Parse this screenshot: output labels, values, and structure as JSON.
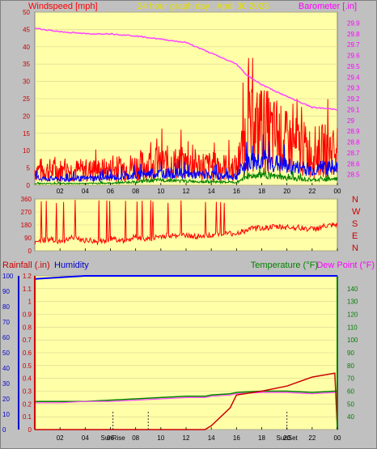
{
  "header": {
    "left_title": "Windspeed [mph]",
    "center_title": "24 hour graph day : April 30 2023",
    "right_title": "Barometer [.in]"
  },
  "lower_header": {
    "rainfall": "Rainfall (.in)",
    "humidity": "Humidity",
    "temperature": "Temperature (°F)",
    "dewpoint": "Dew Point (°F)"
  },
  "x_ticks": [
    "02",
    "04",
    "06",
    "08",
    "10",
    "12",
    "14",
    "16",
    "18",
    "20",
    "22",
    "00"
  ],
  "events": {
    "sunrise": "SunRise",
    "sunset": "SunSet",
    "sunrise_hour": 6.2,
    "sunset_hour": 20.0
  },
  "compass": [
    "N",
    "W",
    "S",
    "E",
    "N"
  ],
  "colors": {
    "plot_bg": "#ffffa8",
    "grid": "#d8d090",
    "wind_gust": "#ff0000",
    "wind_avg": "#0000ff",
    "wind_low": "#008000",
    "barometer": "#ff44ff",
    "direction": "#ff0000",
    "humidity": "#0000ff",
    "temperature": "#008000",
    "dewpoint": "#ff44ff",
    "rainfall": "#cc0000"
  },
  "chart_data": [
    {
      "type": "line",
      "panel": "wind-barometer",
      "x": [
        0,
        2,
        4,
        6,
        8,
        10,
        12,
        14,
        16,
        16.8,
        18,
        20,
        22,
        24
      ],
      "series": [
        {
          "values": [
            4.5,
            4.3,
            4.3,
            4.5,
            5.5,
            6.5,
            6.2,
            5.5,
            5.0,
            15.0,
            16.5,
            12.0,
            9.5,
            10.5
          ]
        },
        {
          "values": [
            2.0,
            1.8,
            1.9,
            2.2,
            2.8,
            3.5,
            3.2,
            2.8,
            2.5,
            6.5,
            7.5,
            5.5,
            4.5,
            5.0
          ]
        },
        {
          "values": [
            0.5,
            0.5,
            0.5,
            0.6,
            1.0,
            1.5,
            1.2,
            1.0,
            0.8,
            2.5,
            3.0,
            2.0,
            1.5,
            1.8
          ]
        },
        {
          "values": [
            29.85,
            29.82,
            29.8,
            29.8,
            29.78,
            29.75,
            29.72,
            29.62,
            29.52,
            29.42,
            29.33,
            29.22,
            29.12,
            29.1
          ]
        }
      ],
      "left_ylim": [
        0,
        50
      ],
      "left_ticks": [
        0,
        5,
        10,
        15,
        20,
        25,
        30,
        35,
        40,
        45,
        50
      ],
      "right_ylim": [
        28.4,
        30.0
      ],
      "right_ticks": [
        28.5,
        28.6,
        28.7,
        28.8,
        28.9,
        29,
        29.1,
        29.2,
        29.3,
        29.4,
        29.5,
        29.6,
        29.7,
        29.8,
        29.9
      ]
    },
    {
      "type": "scatter",
      "panel": "wind-direction",
      "x": [
        0,
        1,
        2,
        3,
        4,
        5,
        6,
        7,
        8,
        9,
        10,
        11,
        12,
        13,
        14,
        15,
        16,
        17,
        18,
        19,
        20,
        21,
        22,
        23,
        24
      ],
      "values": [
        60,
        80,
        65,
        90,
        75,
        60,
        85,
        70,
        95,
        80,
        100,
        110,
        105,
        100,
        110,
        115,
        120,
        150,
        160,
        165,
        165,
        160,
        150,
        170,
        175
      ],
      "ylim": [
        0,
        360
      ],
      "ticks": [
        0,
        90,
        180,
        270,
        360
      ]
    },
    {
      "type": "line",
      "panel": "rain-humidity-temperature",
      "x": [
        0,
        2,
        4,
        6,
        8,
        10,
        12,
        13.5,
        14,
        15.5,
        16,
        18,
        20,
        22,
        23.8,
        24
      ],
      "series": [
        {
          "values": [
            0,
            0,
            0,
            0,
            0,
            0,
            0,
            0,
            0.03,
            0.17,
            0.27,
            0.3,
            0.34,
            0.41,
            0.44,
            0
          ]
        },
        {
          "values": [
            98,
            99,
            100,
            100,
            100,
            100,
            100,
            100,
            100,
            100,
            100,
            100,
            100,
            100,
            100,
            100
          ]
        },
        {
          "values": [
            52,
            52,
            52,
            53,
            54,
            55,
            56,
            56,
            57,
            58,
            59,
            60,
            60,
            59,
            60,
            60
          ]
        },
        {
          "values": [
            51,
            51,
            52,
            52,
            53,
            54,
            55,
            55,
            56,
            57,
            58,
            59,
            59,
            58,
            59,
            59
          ]
        }
      ],
      "rain_ylim": [
        0,
        1.2
      ],
      "rain_ticks": [
        0,
        0.1,
        0.2,
        0.3,
        0.4,
        0.5,
        0.6,
        0.7,
        0.8,
        0.9,
        1,
        1.1,
        1.2
      ],
      "hum_ylim": [
        0,
        100
      ],
      "hum_ticks": [
        0,
        10,
        20,
        30,
        40,
        50,
        60,
        70,
        80,
        90,
        100
      ],
      "temp_ylim": [
        30,
        150
      ],
      "temp_ticks": [
        40,
        50,
        60,
        70,
        80,
        90,
        100,
        110,
        120,
        130,
        140
      ]
    }
  ]
}
